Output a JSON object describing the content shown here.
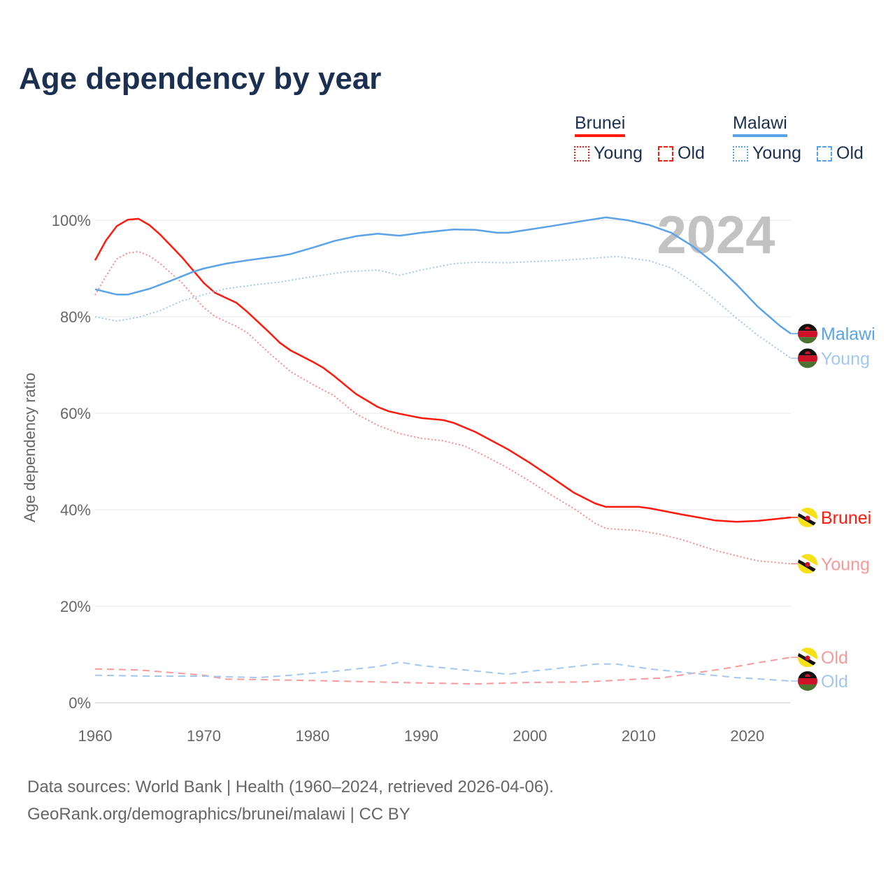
{
  "title": "Age dependency by year",
  "legend": {
    "groups": [
      {
        "name": "Brunei",
        "color": "#ff1a0d",
        "items": [
          "Young",
          "Old"
        ]
      },
      {
        "name": "Malawi",
        "color": "#5aa3e8",
        "items": [
          "Young",
          "Old"
        ]
      }
    ]
  },
  "year_watermark": "2024",
  "footer": {
    "line1": "Data sources: World Bank | Health (1960–2024, retrieved 2026-04-06).",
    "line2": "GeoRank.org/demographics/brunei/malawi | CC BY"
  },
  "chart_data": {
    "type": "line",
    "title": "Age dependency by year",
    "xlabel": "",
    "ylabel": "Age dependency ratio",
    "xlim": [
      1960,
      2024
    ],
    "ylim": [
      0,
      100
    ],
    "x_ticks": [
      "1960",
      "1970",
      "1980",
      "1990",
      "2000",
      "2010",
      "2020"
    ],
    "y_ticks": [
      "0%",
      "20%",
      "40%",
      "60%",
      "80%",
      "100%"
    ],
    "grid": true,
    "series": [
      {
        "name": "Brunei",
        "end_label": "Brunei",
        "color": "#ff1a0d",
        "label_color": "#ff1a0d",
        "style": "solid",
        "country": "brunei",
        "points": [
          [
            1960,
            91.7
          ],
          [
            1961,
            95.8
          ],
          [
            1962,
            98.8
          ],
          [
            1963,
            100.1
          ],
          [
            1964,
            100.3
          ],
          [
            1965,
            99
          ],
          [
            1966,
            97
          ],
          [
            1968,
            92.3
          ],
          [
            1970,
            87
          ],
          [
            1971,
            85
          ],
          [
            1973,
            82.9
          ],
          [
            1974,
            81
          ],
          [
            1976,
            76.8
          ],
          [
            1977,
            74.6
          ],
          [
            1978,
            73
          ],
          [
            1980,
            70.7
          ],
          [
            1981,
            69.4
          ],
          [
            1982,
            67.7
          ],
          [
            1984,
            64
          ],
          [
            1986,
            61.3
          ],
          [
            1987,
            60.4
          ],
          [
            1988,
            59.9
          ],
          [
            1990,
            59
          ],
          [
            1992,
            58.6
          ],
          [
            1993,
            58
          ],
          [
            1995,
            56.1
          ],
          [
            1998,
            52.5
          ],
          [
            2000,
            49.7
          ],
          [
            2002,
            46.7
          ],
          [
            2004,
            43.6
          ],
          [
            2006,
            41.3
          ],
          [
            2007,
            40.6
          ],
          [
            2010,
            40.6
          ],
          [
            2011,
            40.3
          ],
          [
            2014,
            39
          ],
          [
            2017,
            37.8
          ],
          [
            2019,
            37.5
          ],
          [
            2021,
            37.7
          ],
          [
            2024,
            38.4
          ]
        ]
      },
      {
        "name": "Brunei Young",
        "end_label": "Young",
        "color": "#f98c8c",
        "label_color": "#f99a9a",
        "style": "dotted",
        "country": "brunei",
        "points": [
          [
            1960,
            84.5
          ],
          [
            1961,
            88.4
          ],
          [
            1962,
            92
          ],
          [
            1963,
            93.2
          ],
          [
            1964,
            93.5
          ],
          [
            1965,
            92.6
          ],
          [
            1966,
            91
          ],
          [
            1968,
            87
          ],
          [
            1970,
            81.9
          ],
          [
            1971,
            80.1
          ],
          [
            1973,
            78
          ],
          [
            1974,
            76.7
          ],
          [
            1976,
            72.5
          ],
          [
            1978,
            68.6
          ],
          [
            1980,
            66
          ],
          [
            1981,
            64.8
          ],
          [
            1982,
            63.6
          ],
          [
            1984,
            59.9
          ],
          [
            1986,
            57.5
          ],
          [
            1988,
            55.8
          ],
          [
            1990,
            54.8
          ],
          [
            1992,
            54.3
          ],
          [
            1994,
            53.2
          ],
          [
            1996,
            51
          ],
          [
            1998,
            48.6
          ],
          [
            2000,
            45.9
          ],
          [
            2002,
            43
          ],
          [
            2004,
            40.3
          ],
          [
            2006,
            37.2
          ],
          [
            2007,
            36.1
          ],
          [
            2010,
            35.7
          ],
          [
            2012,
            34.9
          ],
          [
            2014,
            33.8
          ],
          [
            2017,
            31.6
          ],
          [
            2020,
            29.9
          ],
          [
            2021,
            29.4
          ],
          [
            2024,
            28.8
          ]
        ]
      },
      {
        "name": "Brunei Old",
        "end_label": "Old",
        "color": "#f99a9a",
        "label_color": "#f99a9a",
        "style": "dashed",
        "country": "brunei",
        "points": [
          [
            1960,
            7
          ],
          [
            1964,
            6.8
          ],
          [
            1970,
            5.7
          ],
          [
            1972,
            4.9
          ],
          [
            1980,
            4.6
          ],
          [
            1990,
            4.1
          ],
          [
            1995,
            3.9
          ],
          [
            2000,
            4.2
          ],
          [
            2005,
            4.3
          ],
          [
            2010,
            4.9
          ],
          [
            2012,
            5.1
          ],
          [
            2015,
            6.1
          ],
          [
            2018,
            7.1
          ],
          [
            2021,
            8.3
          ],
          [
            2024,
            9.4
          ]
        ]
      },
      {
        "name": "Malawi",
        "end_label": "Malawi",
        "color": "#5aa3e8",
        "label_color": "#5aa3e8",
        "style": "solid",
        "country": "malawi",
        "points": [
          [
            1960,
            85.7
          ],
          [
            1962,
            84.6
          ],
          [
            1963,
            84.6
          ],
          [
            1965,
            85.8
          ],
          [
            1967,
            87.5
          ],
          [
            1969,
            89.3
          ],
          [
            1970,
            90
          ],
          [
            1972,
            91
          ],
          [
            1974,
            91.7
          ],
          [
            1977,
            92.6
          ],
          [
            1978,
            93
          ],
          [
            1980,
            94.3
          ],
          [
            1982,
            95.7
          ],
          [
            1984,
            96.7
          ],
          [
            1986,
            97.2
          ],
          [
            1988,
            96.8
          ],
          [
            1990,
            97.4
          ],
          [
            1993,
            98.1
          ],
          [
            1995,
            98
          ],
          [
            1997,
            97.4
          ],
          [
            1998,
            97.4
          ],
          [
            2000,
            98.1
          ],
          [
            2002,
            98.8
          ],
          [
            2005,
            99.9
          ],
          [
            2007,
            100.6
          ],
          [
            2009,
            100
          ],
          [
            2011,
            99
          ],
          [
            2013,
            97.4
          ],
          [
            2015,
            94.6
          ],
          [
            2017,
            91
          ],
          [
            2019,
            86.7
          ],
          [
            2021,
            82
          ],
          [
            2023,
            78.1
          ],
          [
            2024,
            76.5
          ]
        ]
      },
      {
        "name": "Malawi Young",
        "end_label": "Young",
        "color": "#a3c8f0",
        "label_color": "#a3c8f0",
        "style": "dotted",
        "country": "malawi",
        "points": [
          [
            1960,
            80
          ],
          [
            1962,
            79.1
          ],
          [
            1964,
            79.9
          ],
          [
            1966,
            81.3
          ],
          [
            1968,
            83.3
          ],
          [
            1970,
            84.6
          ],
          [
            1972,
            85.8
          ],
          [
            1975,
            86.7
          ],
          [
            1977,
            87.2
          ],
          [
            1980,
            88.3
          ],
          [
            1983,
            89.3
          ],
          [
            1986,
            89.7
          ],
          [
            1988,
            88.6
          ],
          [
            1990,
            89.7
          ],
          [
            1993,
            91
          ],
          [
            1995,
            91.3
          ],
          [
            1998,
            91.2
          ],
          [
            2000,
            91.4
          ],
          [
            2003,
            91.7
          ],
          [
            2005,
            92
          ],
          [
            2008,
            92.5
          ],
          [
            2011,
            91.6
          ],
          [
            2013,
            90.1
          ],
          [
            2015,
            87.2
          ],
          [
            2017,
            83.6
          ],
          [
            2019,
            79.7
          ],
          [
            2021,
            76.1
          ],
          [
            2024,
            71.4
          ]
        ]
      },
      {
        "name": "Malawi Old",
        "end_label": "Old",
        "color": "#a3c8f0",
        "label_color": "#a3c8f0",
        "style": "dashed",
        "country": "malawi",
        "points": [
          [
            1960,
            5.7
          ],
          [
            1965,
            5.5
          ],
          [
            1970,
            5.5
          ],
          [
            1975,
            5.2
          ],
          [
            1978,
            5.7
          ],
          [
            1982,
            6.5
          ],
          [
            1986,
            7.5
          ],
          [
            1988,
            8.4
          ],
          [
            1990,
            7.7
          ],
          [
            1994,
            6.8
          ],
          [
            1998,
            5.9
          ],
          [
            2000,
            6.5
          ],
          [
            2003,
            7.2
          ],
          [
            2006,
            8
          ],
          [
            2008,
            8
          ],
          [
            2011,
            7
          ],
          [
            2015,
            6.1
          ],
          [
            2019,
            5.2
          ],
          [
            2022,
            4.8
          ],
          [
            2024,
            4.5
          ]
        ]
      }
    ]
  }
}
